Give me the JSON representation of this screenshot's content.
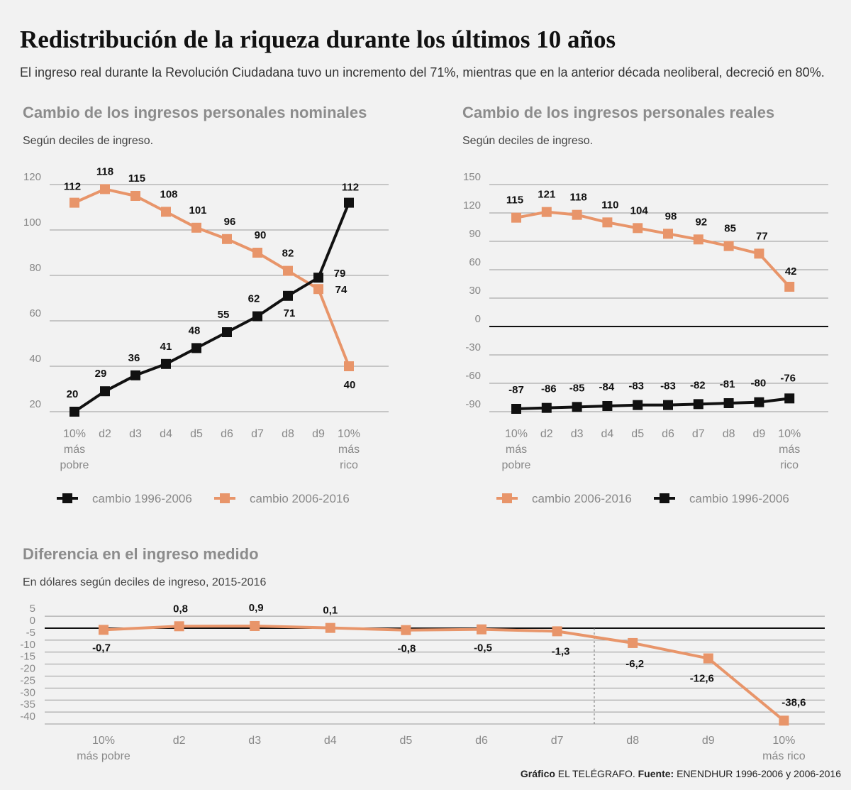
{
  "header": {
    "title": "Redistribución de la riqueza durante los últimos 10 años",
    "subtitle": "El ingreso real durante la Revolución Ciudadana tuvo un incremento del 71%, mientras que en la anterior década neoliberal, decreció en 80%."
  },
  "colors": {
    "orange": "#e8956a",
    "black": "#111111",
    "grid": "#9a9a9a"
  },
  "chart_data": [
    {
      "type": "line",
      "title": "Cambio de los ingresos personales nominales",
      "subtitle": "Según deciles de ingreso.",
      "categories": [
        [
          "10%",
          "más",
          "pobre"
        ],
        [
          "d2"
        ],
        [
          "d3"
        ],
        [
          "d4"
        ],
        [
          "d5"
        ],
        [
          "d6"
        ],
        [
          "d7"
        ],
        [
          "d8"
        ],
        [
          "d9"
        ],
        [
          "10%",
          "más",
          "rico"
        ]
      ],
      "yticks": [
        20,
        40,
        60,
        80,
        100,
        120
      ],
      "ylim": [
        20,
        120
      ],
      "series": [
        {
          "name": "cambio 2006-2016",
          "color": "#e8956a",
          "values": [
            112,
            118,
            115,
            108,
            101,
            96,
            90,
            82,
            74,
            40
          ],
          "labels": [
            "112",
            "118",
            "115",
            "108",
            "101",
            "96",
            "90",
            "82",
            "74",
            "40"
          ]
        },
        {
          "name": "cambio 1996-2006",
          "color": "#111111",
          "values": [
            20,
            29,
            36,
            41,
            48,
            55,
            62,
            71,
            79,
            112
          ],
          "labels": [
            "20",
            "29",
            "36",
            "41",
            "48",
            "55",
            "62",
            "71",
            "79",
            "112"
          ]
        }
      ],
      "legend": [
        "cambio 1996-2006",
        "cambio 2006-2016"
      ]
    },
    {
      "type": "line",
      "title": "Cambio de los ingresos personales reales",
      "subtitle": "Según deciles de ingreso.",
      "categories": [
        [
          "10%",
          "más",
          "pobre"
        ],
        [
          "d2"
        ],
        [
          "d3"
        ],
        [
          "d4"
        ],
        [
          "d5"
        ],
        [
          "d6"
        ],
        [
          "d7"
        ],
        [
          "d8"
        ],
        [
          "d9"
        ],
        [
          "10%",
          "más",
          "rico"
        ]
      ],
      "yticks": [
        -90,
        -60,
        -30,
        0,
        30,
        60,
        90,
        120,
        150
      ],
      "ylim": [
        -90,
        150
      ],
      "series": [
        {
          "name": "cambio 2006-2016",
          "color": "#e8956a",
          "values": [
            115,
            121,
            118,
            110,
            104,
            98,
            92,
            85,
            77,
            42
          ],
          "labels": [
            "115",
            "121",
            "118",
            "110",
            "104",
            "98",
            "92",
            "85",
            "77",
            "42"
          ]
        },
        {
          "name": "cambio 1996-2006",
          "color": "#111111",
          "values": [
            -87,
            -86,
            -85,
            -84,
            -83,
            -83,
            -82,
            -81,
            -80,
            -76
          ],
          "labels": [
            "-87",
            "-86",
            "-85",
            "-84",
            "-83",
            "-83",
            "-82",
            "-81",
            "-80",
            "-76"
          ]
        }
      ],
      "legend": [
        "cambio 2006-2016",
        "cambio 1996-2006"
      ]
    },
    {
      "type": "line",
      "title": "Diferencia en el ingreso medido",
      "subtitle": "En dólares según deciles de ingreso, 2015-2016",
      "categories": [
        [
          "10%",
          "más pobre"
        ],
        [
          "d2"
        ],
        [
          "d3"
        ],
        [
          "d4"
        ],
        [
          "d5"
        ],
        [
          "d6"
        ],
        [
          "d7"
        ],
        [
          "d8"
        ],
        [
          "d9"
        ],
        [
          "10%",
          "más rico"
        ]
      ],
      "yticks": [
        5,
        0,
        -5,
        -10,
        -15,
        -20,
        -25,
        -30,
        -35,
        -40
      ],
      "ylim": [
        -40,
        5
      ],
      "series": [
        {
          "name": "diferencia",
          "color": "#e8956a",
          "values": [
            -0.7,
            0.8,
            0.9,
            0.1,
            -0.8,
            -0.5,
            -1.3,
            -6.2,
            -12.6,
            -38.6
          ],
          "labels": [
            "-0,7",
            "0,8",
            "0,9",
            "0,1",
            "-0,8",
            "-0,5",
            "-1,3",
            "-6,2",
            "-12,6",
            "-38,6"
          ]
        }
      ]
    }
  ],
  "footer": {
    "grafico_label": "Gráfico",
    "grafico_value": "EL TELÉGRAFO.",
    "fuente_label": "Fuente:",
    "fuente_value": "ENENDHUR 1996-2006 y 2006-2016"
  }
}
